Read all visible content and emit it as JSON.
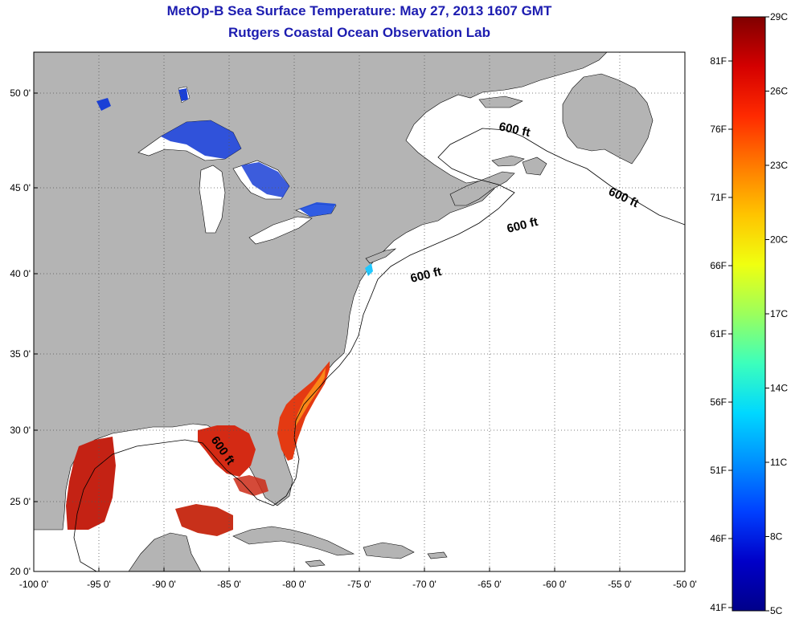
{
  "title": {
    "line1": "MetOp-B Sea Surface Temperature:  May 27, 2013 1607 GMT",
    "line2": "Rutgers Coastal Ocean Observation Lab"
  },
  "axes": {
    "x_ticks": [
      "-100 0'",
      "-95 0'",
      "-90 0'",
      "-85 0'",
      "-80 0'",
      "-75 0'",
      "-70 0'",
      "-65 0'",
      "-60 0'",
      "-55 0'",
      "-50 0'"
    ],
    "y_ticks": [
      "50 0'",
      "45 0'",
      "40 0'",
      "35 0'",
      "30 0'",
      "25 0'",
      "20 0'"
    ]
  },
  "contour_labels": [
    "600 ft",
    "600 ft",
    "600 ft",
    "600 ft",
    "600 ft"
  ],
  "colorbar": {
    "celsius": [
      "29C",
      "26C",
      "23C",
      "20C",
      "17C",
      "14C",
      "11C",
      "8C",
      "5C"
    ],
    "fahrenheit": [
      "81F",
      "76F",
      "71F",
      "66F",
      "61F",
      "56F",
      "51F",
      "46F",
      "41F"
    ],
    "stops": [
      "#800000",
      "#d40000",
      "#ff2a00",
      "#ff7a00",
      "#ffc400",
      "#f0ff10",
      "#9cff5c",
      "#3cffbc",
      "#00d8ff",
      "#0090ff",
      "#0040ff",
      "#0000c8",
      "#00008a"
    ]
  },
  "colors": {
    "land": "#b4b4b4",
    "ocean": "#ffffff",
    "lakes_cold": "#1a3fd6",
    "warm": "#d42a14"
  }
}
